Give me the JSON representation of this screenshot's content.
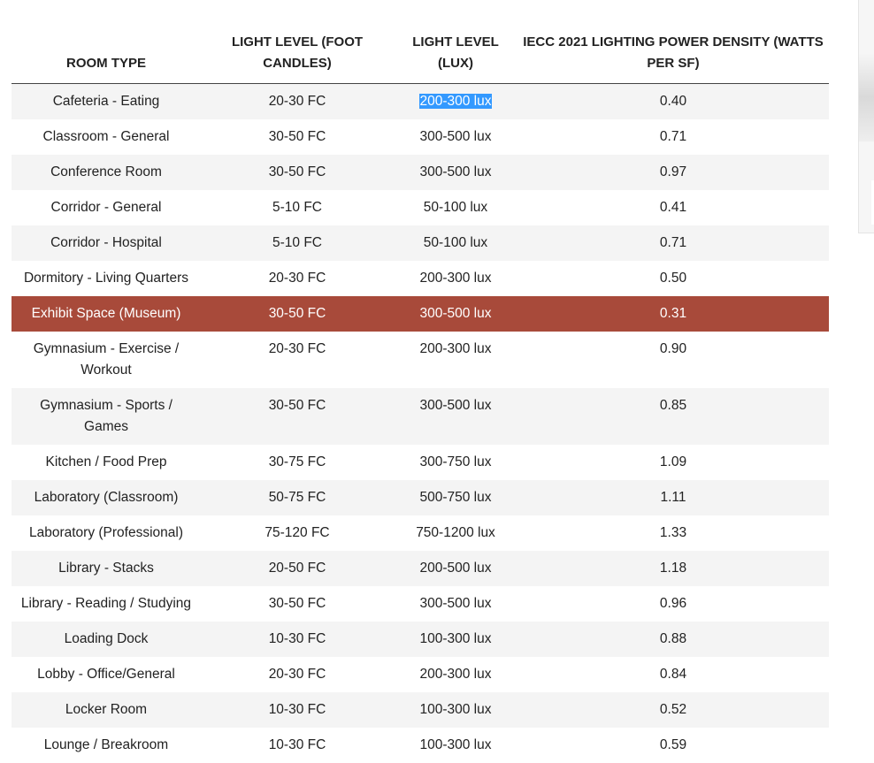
{
  "headers": {
    "room": "ROOM TYPE",
    "fc": "LIGHT LEVEL (FOOT CANDLES)",
    "lux": "LIGHT LEVEL (LUX)",
    "lpd": "IECC 2021 LIGHTING POWER DENSITY (WATTS PER SF)"
  },
  "rows": [
    {
      "room": "Cafeteria - Eating",
      "fc": "20-30 FC",
      "lux": "200-300 lux",
      "lpd": "0.40"
    },
    {
      "room": "Classroom - General",
      "fc": "30-50 FC",
      "lux": "300-500 lux",
      "lpd": "0.71"
    },
    {
      "room": "Conference Room",
      "fc": "30-50 FC",
      "lux": "300-500 lux",
      "lpd": "0.97"
    },
    {
      "room": "Corridor - General",
      "fc": "5-10 FC",
      "lux": "50-100 lux",
      "lpd": "0.41"
    },
    {
      "room": "Corridor - Hospital",
      "fc": "5-10 FC",
      "lux": "50-100 lux",
      "lpd": "0.71"
    },
    {
      "room": "Dormitory - Living Quarters",
      "fc": "20-30 FC",
      "lux": "200-300 lux",
      "lpd": "0.50"
    },
    {
      "room": "Exhibit Space (Museum)",
      "fc": "30-50 FC",
      "lux": "300-500 lux",
      "lpd": "0.31"
    },
    {
      "room": "Gymnasium - Exercise / Workout",
      "fc": "20-30 FC",
      "lux": "200-300 lux",
      "lpd": "0.90"
    },
    {
      "room": "Gymnasium - Sports / Games",
      "fc": "30-50 FC",
      "lux": "300-500 lux",
      "lpd": "0.85"
    },
    {
      "room": "Kitchen / Food Prep",
      "fc": "30-75 FC",
      "lux": "300-750 lux",
      "lpd": "1.09"
    },
    {
      "room": "Laboratory (Classroom)",
      "fc": "50-75 FC",
      "lux": "500-750 lux",
      "lpd": "1.11"
    },
    {
      "room": "Laboratory (Professional)",
      "fc": "75-120 FC",
      "lux": "750-1200 lux",
      "lpd": "1.33"
    },
    {
      "room": "Library - Stacks",
      "fc": "20-50 FC",
      "lux": "200-500 lux",
      "lpd": "1.18"
    },
    {
      "room": "Library - Reading / Studying",
      "fc": "30-50 FC",
      "lux": "300-500 lux",
      "lpd": "0.96"
    },
    {
      "room": "Loading Dock",
      "fc": "10-30 FC",
      "lux": "100-300 lux",
      "lpd": "0.88"
    },
    {
      "room": "Lobby - Office/General",
      "fc": "20-30 FC",
      "lux": "200-300 lux",
      "lpd": "0.84"
    },
    {
      "room": "Locker Room",
      "fc": "10-30 FC",
      "lux": "100-300 lux",
      "lpd": "0.52"
    },
    {
      "room": "Lounge / Breakroom",
      "fc": "10-30 FC",
      "lux": "100-300 lux",
      "lpd": "0.59"
    }
  ],
  "colors": {
    "highlight_row": "#a84a3a",
    "stripe": "#f4f4f4",
    "text_selection": "#3399ff"
  }
}
